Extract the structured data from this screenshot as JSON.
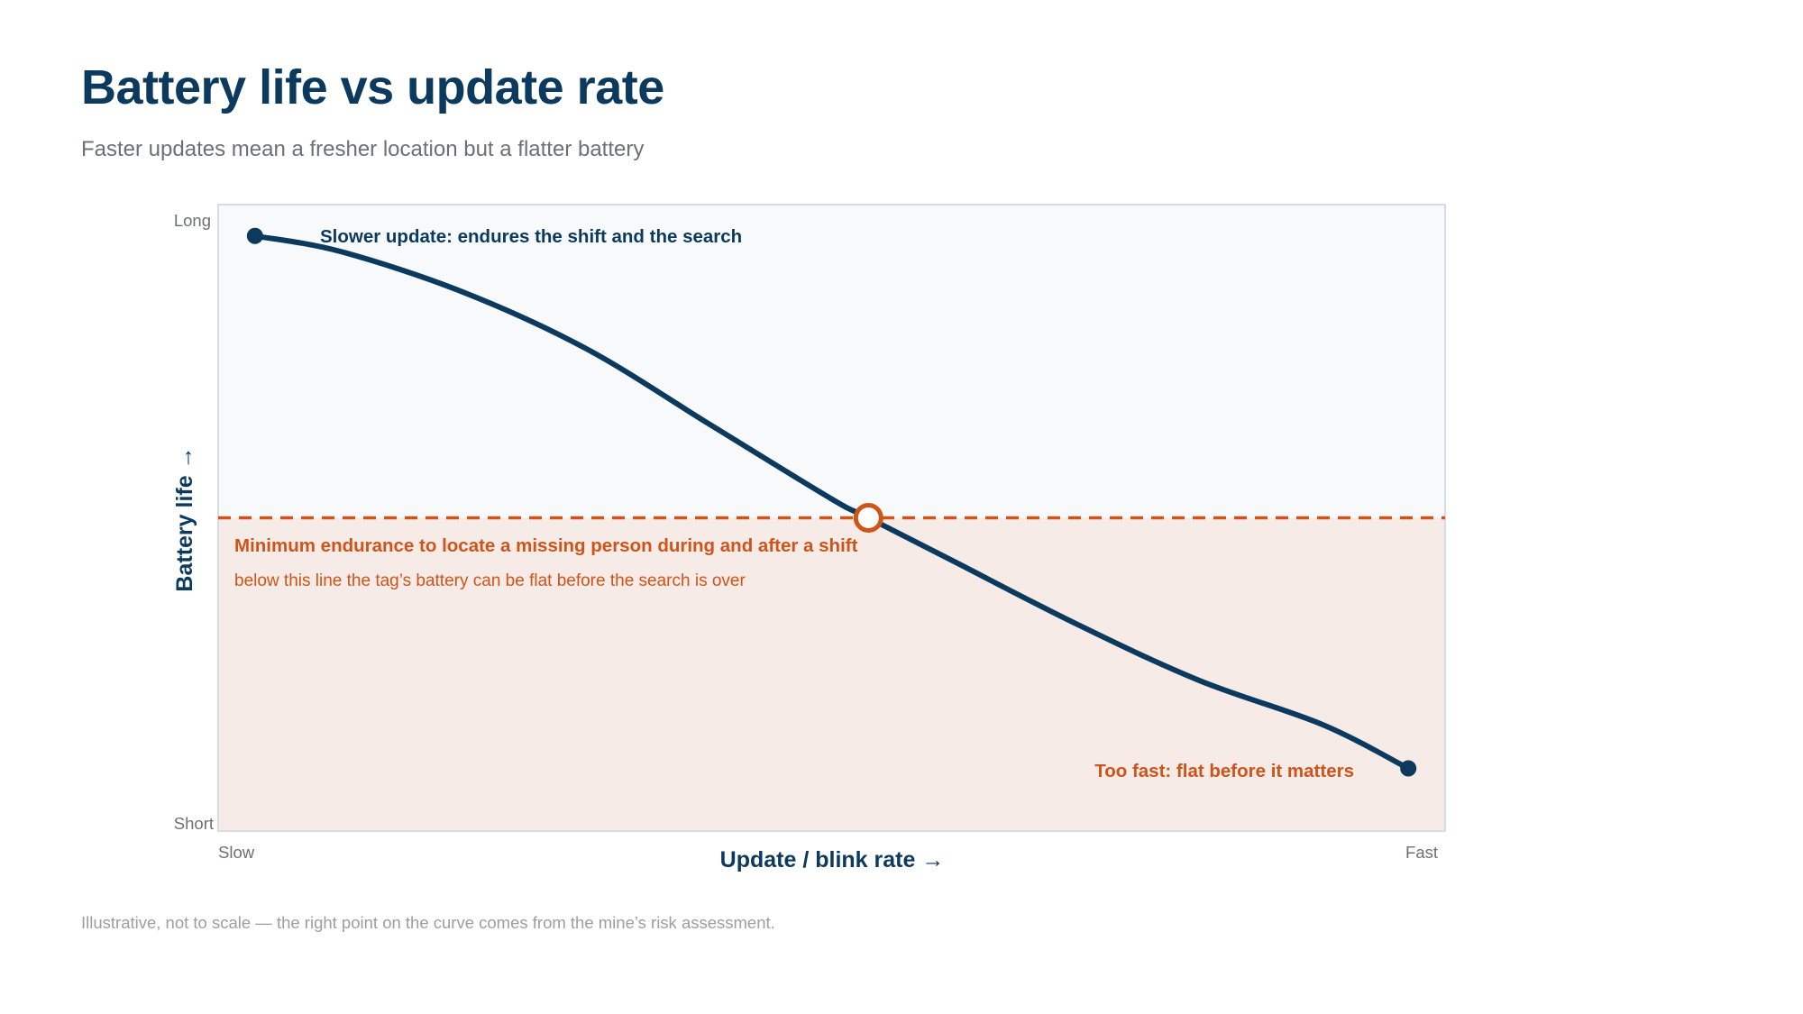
{
  "header": {
    "title": "Battery life vs update rate",
    "subtitle": "Faster updates mean a fresher location but a flatter battery"
  },
  "footer": {
    "note": "Illustrative, not to scale — the right point on the curve comes from the mine’s risk assessment."
  },
  "colors": {
    "curve": "#0b3a5e",
    "threshold": "#d0541a",
    "safe_zone": "#f7f9fb",
    "risk_zone": "#f6ebe6",
    "frame": "#d9dde3"
  },
  "chart_data": {
    "type": "line",
    "xlabel": "Update / blink rate →",
    "ylabel": "Battery life →",
    "x_ticks": [
      "Slow",
      "Fast"
    ],
    "y_ticks": [
      "Long",
      "Short"
    ],
    "xlim": [
      0,
      1
    ],
    "ylim": [
      0,
      1
    ],
    "series": [
      {
        "x": [
          0.03,
          0.1,
          0.2,
          0.3,
          0.4,
          0.5,
          0.53,
          0.6,
          0.7,
          0.8,
          0.9,
          0.97
        ],
        "y": [
          0.95,
          0.925,
          0.86,
          0.77,
          0.65,
          0.53,
          0.5,
          0.43,
          0.33,
          0.24,
          0.17,
          0.1
        ]
      }
    ],
    "threshold": {
      "y": 0.5,
      "label": "Minimum endurance to locate a missing person during and after a shift",
      "sublabel": "below this line the tag’s battery can be flat before the search is over"
    },
    "annotations": [
      {
        "text": "Slower update: endures the shift and the search",
        "x": 0.03,
        "y": 0.95
      },
      {
        "text": "Too fast: flat before it matters",
        "x": 0.97,
        "y": 0.1
      }
    ],
    "crossing_point": {
      "x": 0.53,
      "y": 0.5
    },
    "grid": false,
    "legend": "none"
  }
}
